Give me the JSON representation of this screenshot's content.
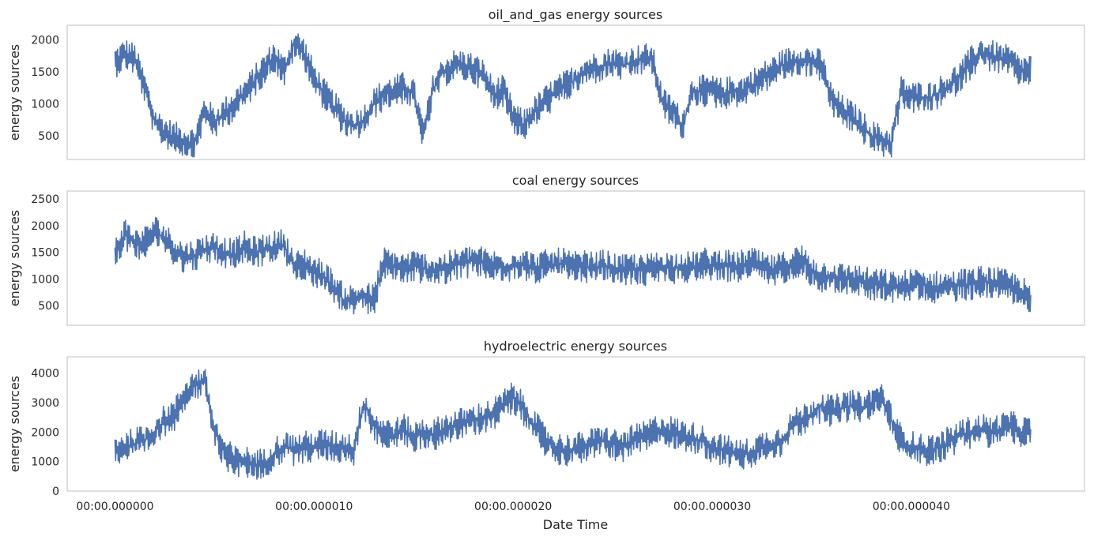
{
  "xlabel": "Date Time",
  "x_tick_labels": [
    "00:00.000000",
    "00:00.000010",
    "00:00.000020",
    "00:00.000030",
    "00:00.000040"
  ],
  "line_color": "#4c72b0",
  "chart_data": [
    {
      "type": "line",
      "title": "oil_and_gas energy sources",
      "ylabel": "energy sources",
      "yticks": [
        500,
        1000,
        1500,
        2000
      ],
      "ylim": [
        130,
        2230
      ],
      "xlim": [
        -2.4,
        48.7
      ],
      "grid": false,
      "series": [
        {
          "x": [
            0,
            0.5,
            1,
            1.5,
            2,
            2.5,
            3,
            3.5,
            4,
            4.5,
            5,
            5.5,
            6,
            6.5,
            7,
            7.5,
            8,
            8.5,
            9,
            9.5,
            10,
            10.5,
            11,
            11.5,
            12,
            12.5,
            13,
            13.5,
            14,
            14.5,
            15,
            15.5,
            16,
            16.5,
            17,
            17.5,
            18,
            18.5,
            19,
            19.5,
            20,
            20.5,
            21,
            21.5,
            22,
            22.5,
            23,
            23.5,
            24,
            24.5,
            25,
            25.5,
            26,
            26.5,
            27,
            27.5,
            28,
            28.5,
            29,
            29.5,
            30,
            30.5,
            31,
            31.5,
            32,
            32.5,
            33,
            33.5,
            34,
            34.5,
            35,
            35.5,
            36,
            36.5,
            37,
            37.5,
            38,
            38.5,
            39,
            39.5,
            40,
            40.5,
            41,
            41.5,
            42,
            42.5,
            43,
            43.5,
            44,
            44.5,
            45,
            45.5,
            46
          ],
          "values": [
            1650,
            1780,
            1700,
            1250,
            700,
            560,
            470,
            420,
            380,
            900,
            700,
            850,
            1000,
            1150,
            1350,
            1550,
            1750,
            1500,
            1950,
            1800,
            1400,
            1150,
            950,
            750,
            650,
            750,
            1000,
            1150,
            1200,
            1250,
            1150,
            500,
            1250,
            1500,
            1600,
            1600,
            1550,
            1450,
            1150,
            1200,
            800,
            650,
            850,
            1000,
            1150,
            1250,
            1350,
            1500,
            1550,
            1600,
            1650,
            1600,
            1650,
            1700,
            1700,
            1000,
            900,
            650,
            1200,
            1200,
            1200,
            1150,
            1200,
            1200,
            1300,
            1400,
            1500,
            1600,
            1650,
            1700,
            1650,
            1600,
            1050,
            900,
            800,
            650,
            500,
            420,
            380,
            1200,
            1100,
            1100,
            1100,
            1200,
            1300,
            1450,
            1650,
            1800,
            1750,
            1700,
            1650,
            1500,
            1550
          ]
        }
      ]
    },
    {
      "type": "line",
      "title": "coal energy sources",
      "ylabel": "energy sources",
      "yticks": [
        500,
        1000,
        1500,
        2000,
        2500
      ],
      "ylim": [
        130,
        2650
      ],
      "xlim": [
        -2.4,
        48.7
      ],
      "grid": false,
      "series": [
        {
          "x": [
            0,
            0.5,
            1,
            1.5,
            2,
            2.5,
            3,
            3.5,
            4,
            4.5,
            5,
            5.5,
            6,
            6.5,
            7,
            7.5,
            8,
            8.5,
            9,
            9.5,
            10,
            10.5,
            11,
            11.5,
            12,
            12.5,
            13,
            13.5,
            14,
            14.5,
            15,
            15.5,
            16,
            16.5,
            17,
            17.5,
            18,
            18.5,
            19,
            19.5,
            20,
            20.5,
            21,
            21.5,
            22,
            22.5,
            23,
            23.5,
            24,
            24.5,
            25,
            25.5,
            26,
            26.5,
            27,
            27.5,
            28,
            28.5,
            29,
            29.5,
            30,
            30.5,
            31,
            31.5,
            32,
            32.5,
            33,
            33.5,
            34,
            34.5,
            35,
            35.5,
            36,
            36.5,
            37,
            37.5,
            38,
            38.5,
            39,
            39.5,
            40,
            40.5,
            41,
            41.5,
            42,
            42.5,
            43,
            43.5,
            44,
            44.5,
            45,
            45.5,
            46
          ],
          "values": [
            1500,
            1850,
            1650,
            1700,
            1900,
            1750,
            1550,
            1400,
            1450,
            1550,
            1600,
            1500,
            1450,
            1600,
            1500,
            1550,
            1600,
            1650,
            1200,
            1300,
            1150,
            1050,
            850,
            600,
            600,
            650,
            600,
            1300,
            1250,
            1200,
            1250,
            1200,
            1150,
            1200,
            1250,
            1300,
            1350,
            1300,
            1250,
            1200,
            1250,
            1300,
            1200,
            1250,
            1250,
            1300,
            1200,
            1250,
            1200,
            1250,
            1200,
            1150,
            1200,
            1150,
            1200,
            1250,
            1200,
            1250,
            1200,
            1300,
            1250,
            1300,
            1200,
            1250,
            1300,
            1200,
            1150,
            1200,
            1300,
            1350,
            1150,
            1050,
            1050,
            1000,
            1000,
            950,
            900,
            900,
            850,
            850,
            900,
            900,
            850,
            850,
            850,
            900,
            900,
            950,
            950,
            900,
            850,
            800,
            550
          ]
        }
      ]
    },
    {
      "type": "line",
      "title": "hydroelectric energy sources",
      "ylabel": "energy sources",
      "yticks": [
        0,
        1000,
        2000,
        3000,
        4000
      ],
      "ylim": [
        0,
        4550
      ],
      "xlim": [
        -2.4,
        48.7
      ],
      "grid": false,
      "series": [
        {
          "x": [
            0,
            0.5,
            1,
            1.5,
            2,
            2.5,
            3,
            3.5,
            4,
            4.5,
            5,
            5.5,
            6,
            6.5,
            7,
            7.5,
            8,
            8.5,
            9,
            9.5,
            10,
            10.5,
            11,
            11.5,
            12,
            12.5,
            13,
            13.5,
            14,
            14.5,
            15,
            15.5,
            16,
            16.5,
            17,
            17.5,
            18,
            18.5,
            19,
            19.5,
            20,
            20.5,
            21,
            21.5,
            22,
            22.5,
            23,
            23.5,
            24,
            24.5,
            25,
            25.5,
            26,
            26.5,
            27,
            27.5,
            28,
            28.5,
            29,
            29.5,
            30,
            30.5,
            31,
            31.5,
            32,
            32.5,
            33,
            33.5,
            34,
            34.5,
            35,
            35.5,
            36,
            36.5,
            37,
            37.5,
            38,
            38.5,
            39,
            39.5,
            40,
            40.5,
            41,
            41.5,
            42,
            42.5,
            43,
            43.5,
            44,
            44.5,
            45,
            45.5,
            46
          ],
          "values": [
            1400,
            1500,
            1600,
            1700,
            2000,
            2400,
            2600,
            3300,
            3600,
            3700,
            2000,
            1300,
            1000,
            1000,
            900,
            900,
            1300,
            1500,
            1400,
            1500,
            1500,
            1600,
            1500,
            1500,
            1400,
            3000,
            2200,
            2000,
            1900,
            2100,
            1800,
            2000,
            1900,
            2100,
            2200,
            2300,
            2400,
            2500,
            2600,
            2900,
            3200,
            2800,
            2300,
            1800,
            1500,
            1400,
            1400,
            1500,
            1600,
            1700,
            1600,
            1500,
            1700,
            1800,
            2000,
            2100,
            2000,
            1900,
            1800,
            1700,
            1500,
            1400,
            1300,
            1200,
            1300,
            1500,
            1600,
            1700,
            2200,
            2400,
            2600,
            2900,
            2700,
            2800,
            2900,
            2800,
            3000,
            3200,
            2400,
            1700,
            1500,
            1400,
            1400,
            1500,
            1700,
            1900,
            2000,
            2100,
            2000,
            2100,
            2200,
            2000,
            2000
          ]
        }
      ]
    }
  ]
}
